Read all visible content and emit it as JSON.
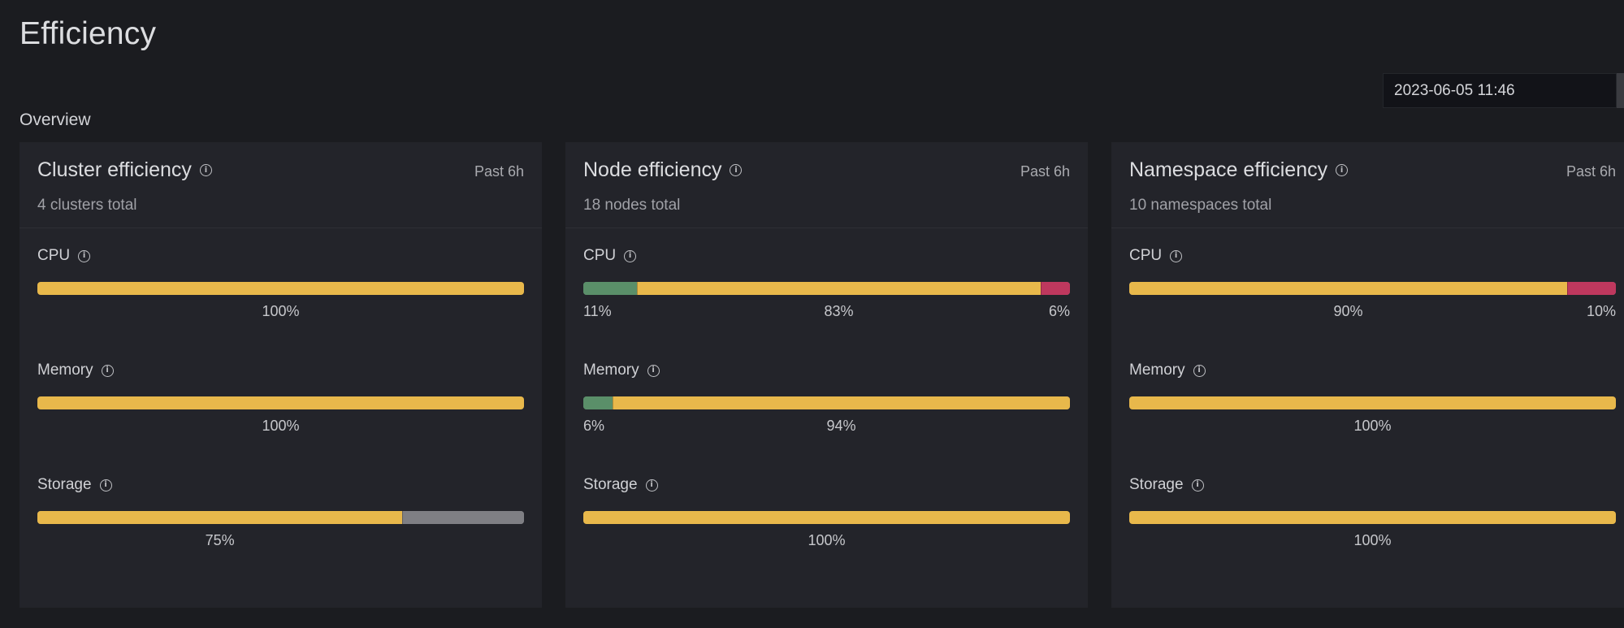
{
  "page": {
    "title": "Efficiency",
    "section": "Overview"
  },
  "date_picker": {
    "value": "2023-06-05 11:46"
  },
  "colors": {
    "background": "#1b1c20",
    "panel": "#23242a",
    "green": "#5a8f69",
    "yellow": "#e8b84b",
    "red": "#bf385e",
    "grey": "#7f7f84"
  },
  "panels": [
    {
      "title": "Cluster efficiency",
      "range": "Past 6h",
      "subtitle": "4 clusters total",
      "metrics": [
        {
          "label": "CPU",
          "segments": [
            {
              "color": "yellow",
              "value": 100,
              "label": "100%"
            }
          ]
        },
        {
          "label": "Memory",
          "segments": [
            {
              "color": "yellow",
              "value": 100,
              "label": "100%"
            }
          ]
        },
        {
          "label": "Storage",
          "segments": [
            {
              "color": "yellow",
              "value": 75,
              "label": "75%"
            },
            {
              "color": "grey",
              "value": 25,
              "label": ""
            }
          ]
        }
      ]
    },
    {
      "title": "Node efficiency",
      "range": "Past 6h",
      "subtitle": "18 nodes total",
      "metrics": [
        {
          "label": "CPU",
          "segments": [
            {
              "color": "green",
              "value": 11,
              "label": "11%"
            },
            {
              "color": "yellow",
              "value": 83,
              "label": "83%"
            },
            {
              "color": "red",
              "value": 6,
              "label": "6%"
            }
          ]
        },
        {
          "label": "Memory",
          "segments": [
            {
              "color": "green",
              "value": 6,
              "label": "6%"
            },
            {
              "color": "yellow",
              "value": 94,
              "label": "94%"
            }
          ]
        },
        {
          "label": "Storage",
          "segments": [
            {
              "color": "yellow",
              "value": 100,
              "label": "100%"
            }
          ]
        }
      ]
    },
    {
      "title": "Namespace efficiency",
      "range": "Past 6h",
      "subtitle": "10 namespaces total",
      "metrics": [
        {
          "label": "CPU",
          "segments": [
            {
              "color": "yellow",
              "value": 90,
              "label": "90%"
            },
            {
              "color": "red",
              "value": 10,
              "label": "10%"
            }
          ]
        },
        {
          "label": "Memory",
          "segments": [
            {
              "color": "yellow",
              "value": 100,
              "label": "100%"
            }
          ]
        },
        {
          "label": "Storage",
          "segments": [
            {
              "color": "yellow",
              "value": 100,
              "label": "100%"
            }
          ]
        }
      ]
    }
  ]
}
